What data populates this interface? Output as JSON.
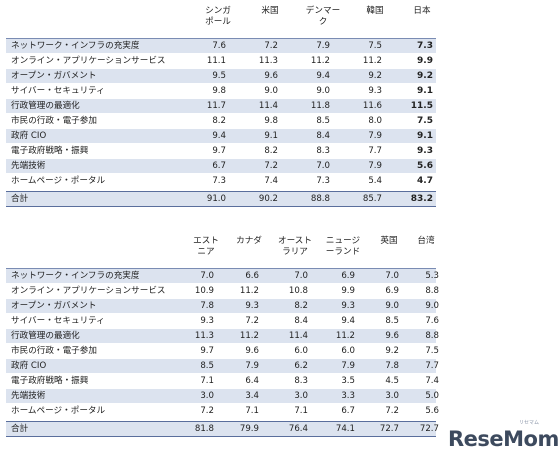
{
  "table1": {
    "headers": [
      "シンガ\nポール",
      "米国",
      "デンマー\nク",
      "韓国",
      "日本"
    ],
    "rows": [
      {
        "label": "ネットワーク・インフラの充実度",
        "values": [
          "7.6",
          "7.2",
          "7.9",
          "7.5",
          "7.3"
        ]
      },
      {
        "label": "オンライン・アプリケーションサービス",
        "values": [
          "11.1",
          "11.3",
          "11.2",
          "11.2",
          "9.9"
        ]
      },
      {
        "label": "オープン・ガバメント",
        "values": [
          "9.5",
          "9.6",
          "9.4",
          "9.2",
          "9.2"
        ]
      },
      {
        "label": "サイバー・セキュリティ",
        "values": [
          "9.8",
          "9.0",
          "9.0",
          "9.3",
          "9.1"
        ]
      },
      {
        "label": "行政管理の最適化",
        "values": [
          "11.7",
          "11.4",
          "11.8",
          "11.6",
          "11.5"
        ]
      },
      {
        "label": "市民の行政・電子参加",
        "values": [
          "8.2",
          "9.8",
          "8.5",
          "8.0",
          "7.5"
        ]
      },
      {
        "label": "政府 CIO",
        "values": [
          "9.4",
          "9.1",
          "8.4",
          "7.9",
          "9.1"
        ]
      },
      {
        "label": "電子政府戦略・振興",
        "values": [
          "9.7",
          "8.2",
          "8.3",
          "7.7",
          "9.3"
        ]
      },
      {
        "label": "先端技術",
        "values": [
          "6.7",
          "7.2",
          "7.0",
          "7.9",
          "5.6"
        ]
      },
      {
        "label": "ホームページ・ポータル",
        "values": [
          "7.3",
          "7.4",
          "7.3",
          "5.4",
          "4.7"
        ]
      }
    ],
    "total": {
      "label": "合計",
      "values": [
        "91.0",
        "90.2",
        "88.8",
        "85.7",
        "83.2"
      ]
    }
  },
  "table2": {
    "headers": [
      "エスト\nニア",
      "カナダ",
      "オースト\nラリア",
      "ニュージ\nーランド",
      "英国",
      "台湾"
    ],
    "rows": [
      {
        "label": "ネットワーク・インフラの充実度",
        "values": [
          "7.0",
          "6.6",
          "7.0",
          "6.9",
          "7.0",
          "5.3"
        ]
      },
      {
        "label": "オンライン・アプリケーションサービス",
        "values": [
          "10.9",
          "11.2",
          "10.8",
          "9.9",
          "6.9",
          "8.8"
        ]
      },
      {
        "label": "オープン・ガバメント",
        "values": [
          "7.8",
          "9.3",
          "8.2",
          "9.3",
          "9.0",
          "9.0"
        ]
      },
      {
        "label": "サイバー・セキュリティ",
        "values": [
          "9.3",
          "7.2",
          "8.4",
          "9.4",
          "8.5",
          "7.6"
        ]
      },
      {
        "label": "行政管理の最適化",
        "values": [
          "11.3",
          "11.2",
          "11.4",
          "11.2",
          "9.6",
          "8.8"
        ]
      },
      {
        "label": "市民の行政・電子参加",
        "values": [
          "9.7",
          "9.6",
          "6.0",
          "6.0",
          "9.2",
          "7.5"
        ]
      },
      {
        "label": "政府 CIO",
        "values": [
          "8.5",
          "7.9",
          "6.2",
          "7.9",
          "7.8",
          "7.7"
        ]
      },
      {
        "label": "電子政府戦略・振興",
        "values": [
          "7.1",
          "6.4",
          "8.3",
          "3.5",
          "4.5",
          "7.4"
        ]
      },
      {
        "label": "先端技術",
        "values": [
          "3.0",
          "3.4",
          "3.0",
          "3.3",
          "3.0",
          "5.0"
        ]
      },
      {
        "label": "ホームページ・ポータル",
        "values": [
          "7.2",
          "7.1",
          "7.1",
          "6.7",
          "7.2",
          "5.6"
        ]
      }
    ],
    "total": {
      "label": "合計",
      "values": [
        "81.8",
        "79.9",
        "76.4",
        "74.1",
        "72.7",
        "72.7"
      ]
    }
  },
  "watermark": {
    "logo": "ReseMom",
    "sub": "リセマム"
  },
  "colors": {
    "band": "#dce3ef",
    "rule": "#5a6e9c",
    "logo": "#3d4a5e"
  }
}
